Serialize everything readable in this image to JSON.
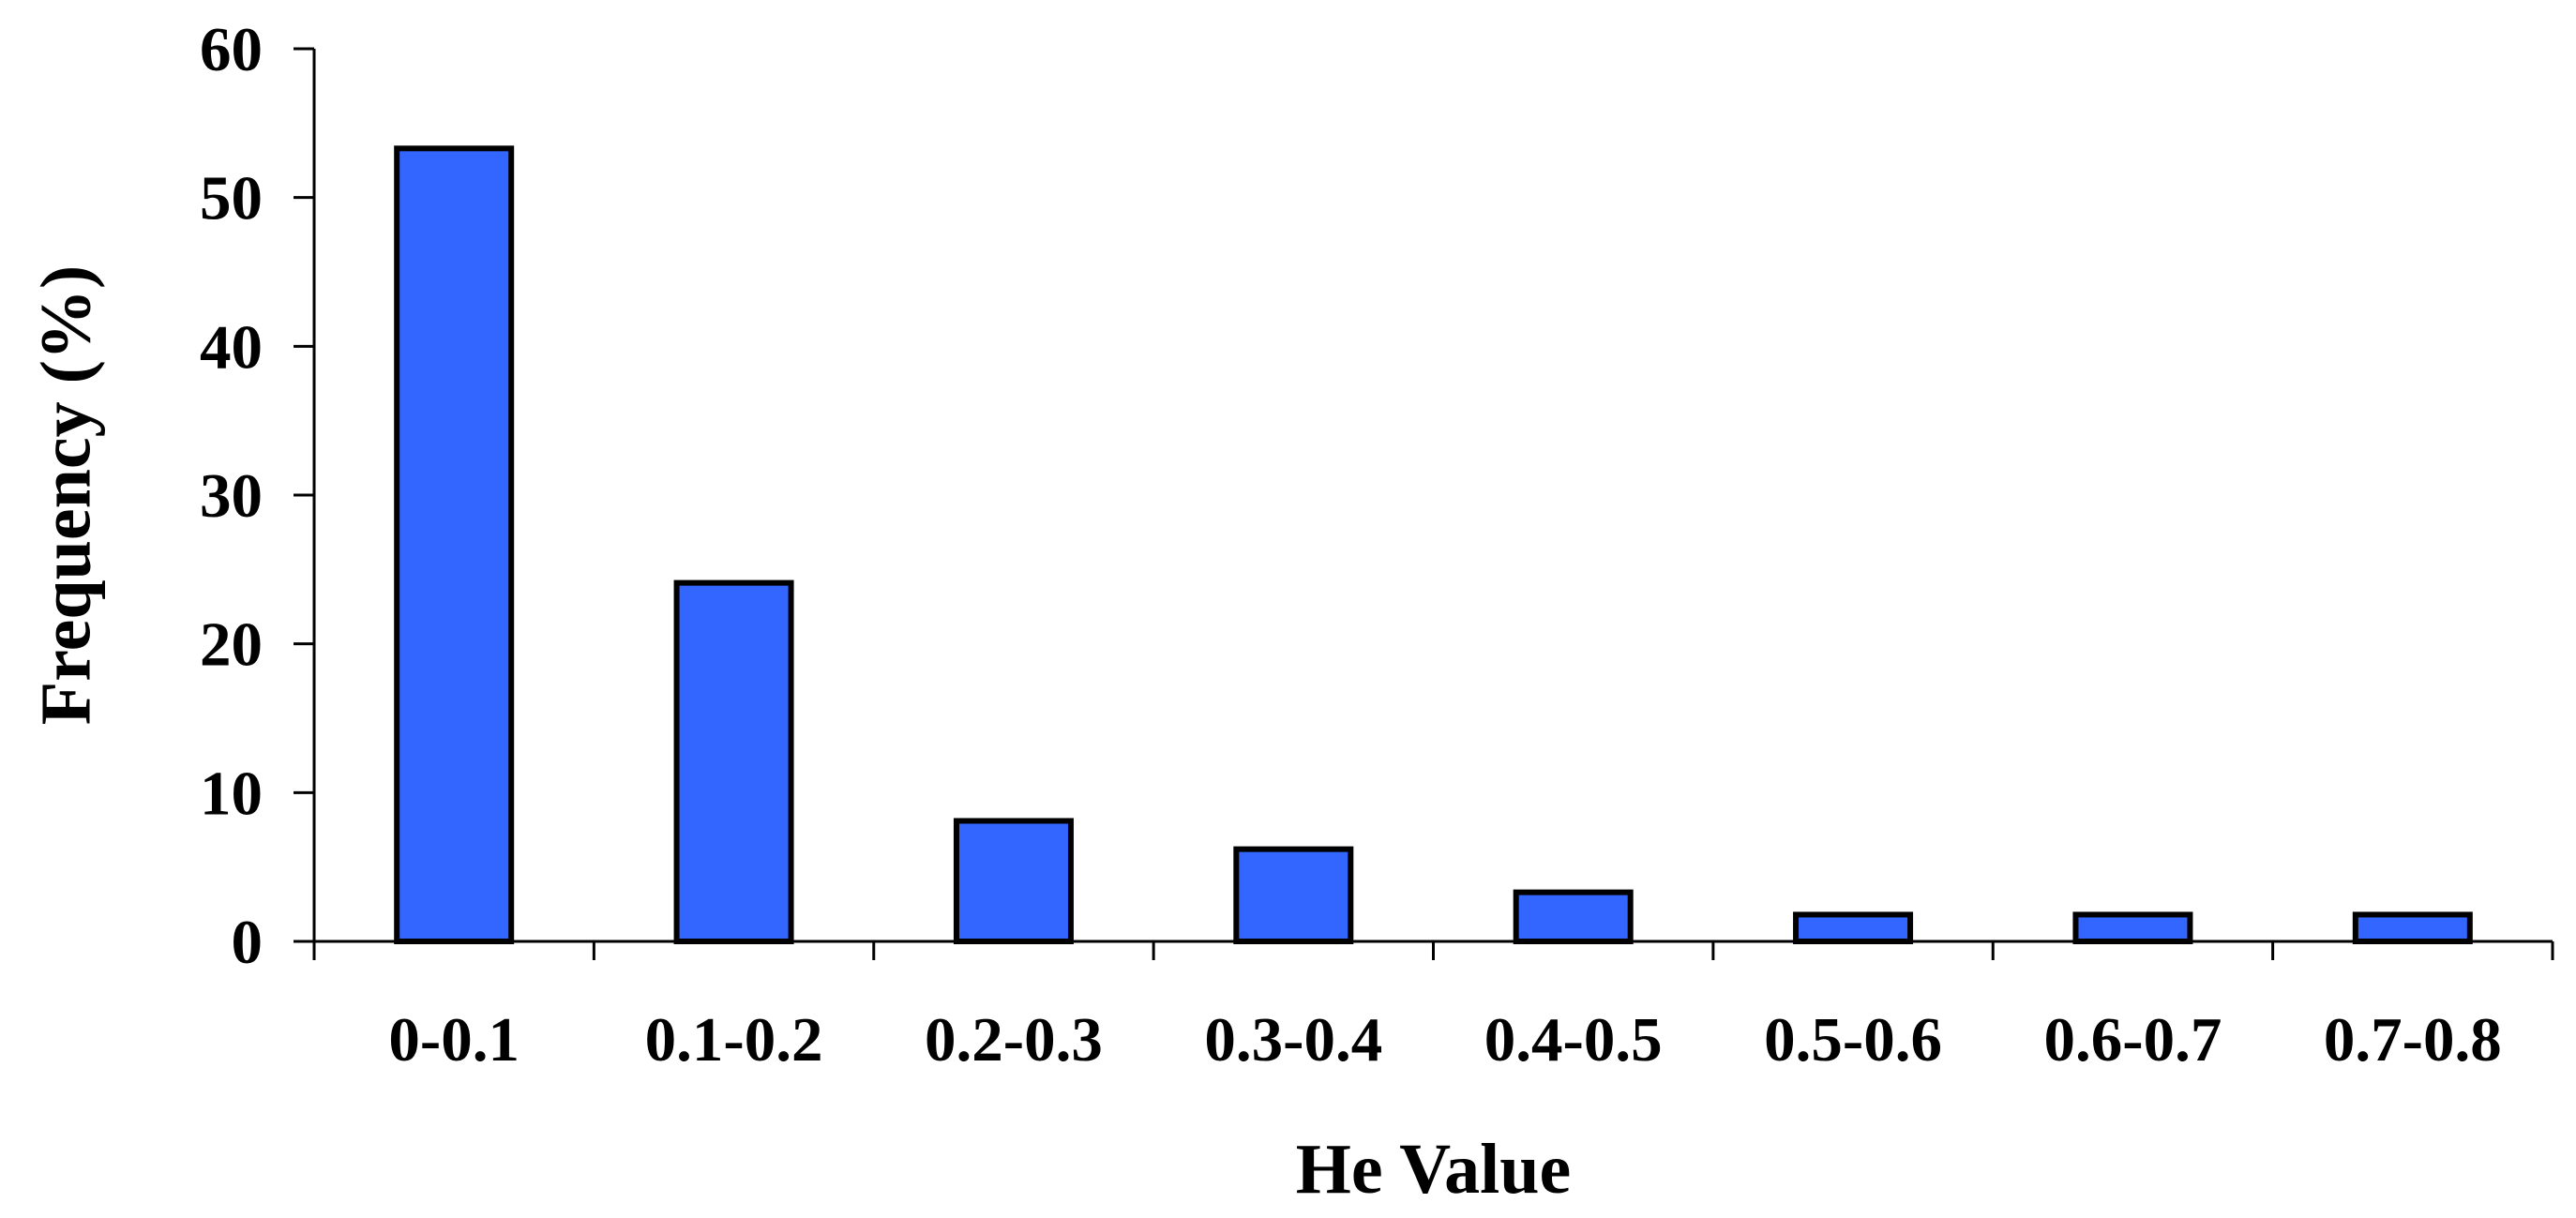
{
  "chart_data": {
    "type": "bar",
    "categories": [
      "0-0.1",
      "0.1-0.2",
      "0.2-0.3",
      "0.3-0.4",
      "0.4-0.5",
      "0.5-0.6",
      "0.6-0.7",
      "0.7-0.8"
    ],
    "values": [
      53.3,
      24.1,
      8.1,
      6.2,
      3.3,
      1.8,
      1.8,
      1.8
    ],
    "title": "",
    "xlabel": "He Value",
    "ylabel": "Frequency (%)",
    "ylim": [
      0,
      60
    ],
    "yticks": [
      "0",
      "10",
      "20",
      "30",
      "40",
      "50",
      "60"
    ],
    "grid": false,
    "bar_color": "#3366ff"
  }
}
